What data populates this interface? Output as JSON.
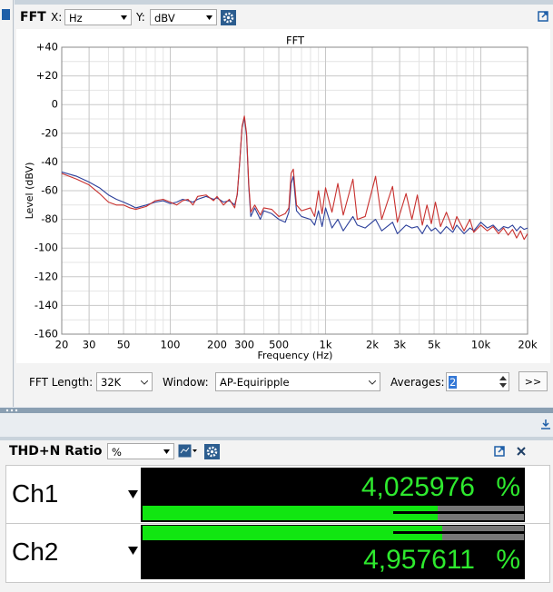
{
  "fft_panel": {
    "title": "FFT",
    "x_label": "X:",
    "x_unit": "Hz",
    "y_label": "Y:",
    "y_unit": "dBV"
  },
  "chart_data": {
    "type": "line",
    "title": "FFT",
    "x_axis_label": "Frequency (Hz)",
    "y_axis_label": "Level (dBV)",
    "log_x": true,
    "grid": true,
    "xlim": [
      20,
      20000
    ],
    "ylim": [
      -160,
      40
    ],
    "xticks": [
      20,
      30,
      50,
      100,
      200,
      300,
      500,
      {
        "value": 1000,
        "label": "1k"
      },
      {
        "value": 2000,
        "label": "2k"
      },
      {
        "value": 3000,
        "label": "3k"
      },
      {
        "value": 5000,
        "label": "5k"
      },
      {
        "value": 10000,
        "label": "10k"
      },
      {
        "value": 20000,
        "label": "20k"
      }
    ],
    "yticks": [
      -160,
      -140,
      -120,
      -100,
      -80,
      -60,
      -40,
      -20,
      0,
      {
        "value": 20,
        "label": "+20"
      },
      {
        "value": 40,
        "label": "+40"
      }
    ],
    "x": [
      20,
      25,
      30,
      35,
      40,
      45,
      50,
      55,
      60,
      70,
      80,
      90,
      100,
      110,
      120,
      130,
      140,
      150,
      170,
      190,
      200,
      220,
      240,
      260,
      270,
      280,
      290,
      300,
      310,
      320,
      330,
      350,
      380,
      400,
      450,
      500,
      550,
      580,
      600,
      620,
      650,
      700,
      800,
      850,
      900,
      950,
      1000,
      1100,
      1200,
      1300,
      1500,
      1600,
      1800,
      2100,
      2300,
      2700,
      2900,
      3300,
      3600,
      3900,
      4200,
      4500,
      4800,
      5100,
      5500,
      6000,
      6600,
      7000,
      7800,
      8500,
      9000,
      10000,
      11000,
      12000,
      13000,
      14000,
      15000,
      16000,
      17000,
      18000,
      19000,
      20000
    ],
    "series": [
      {
        "color": "#2b3f9a",
        "values": [
          -47,
          -50,
          -54,
          -58,
          -63,
          -66,
          -68,
          -70,
          -72,
          -70,
          -68,
          -67,
          -69,
          -68,
          -66,
          -67,
          -68,
          -66,
          -64,
          -66,
          -65,
          -68,
          -67,
          -70,
          -63,
          -40,
          -16,
          -9,
          -22,
          -57,
          -78,
          -72,
          -80,
          -74,
          -76,
          -80,
          -82,
          -75,
          -55,
          -50,
          -74,
          -78,
          -80,
          -84,
          -74,
          -85,
          -72,
          -86,
          -80,
          -88,
          -78,
          -84,
          -86,
          -80,
          -88,
          -82,
          -90,
          -84,
          -86,
          -85,
          -90,
          -84,
          -88,
          -86,
          -90,
          -85,
          -89,
          -84,
          -90,
          -86,
          -88,
          -82,
          -86,
          -84,
          -88,
          -85,
          -86,
          -84,
          -88,
          -85,
          -87,
          -86
        ]
      },
      {
        "color": "#c8302e",
        "values": [
          -48,
          -52,
          -56,
          -62,
          -68,
          -70,
          -70,
          -72,
          -73,
          -71,
          -67,
          -66,
          -68,
          -70,
          -67,
          -66,
          -70,
          -64,
          -63,
          -67,
          -64,
          -70,
          -66,
          -72,
          -62,
          -40,
          -15,
          -8,
          -20,
          -55,
          -75,
          -70,
          -77,
          -72,
          -73,
          -78,
          -76,
          -72,
          -48,
          -45,
          -70,
          -74,
          -72,
          -78,
          -60,
          -76,
          -58,
          -75,
          -55,
          -77,
          -52,
          -80,
          -78,
          -50,
          -80,
          -57,
          -82,
          -62,
          -80,
          -63,
          -84,
          -70,
          -83,
          -68,
          -85,
          -75,
          -87,
          -78,
          -88,
          -80,
          -89,
          -84,
          -88,
          -85,
          -90,
          -86,
          -91,
          -87,
          -93,
          -88,
          -94,
          -90
        ]
      }
    ]
  },
  "fft_controls": {
    "length_label": "FFT Length:",
    "length": "32K",
    "window_label": "Window:",
    "window": "AP-Equiripple",
    "averages_label": "Averages:",
    "averages": "2",
    "more_button": ">>"
  },
  "thd_panel": {
    "title": "THD+N Ratio",
    "unit": "%",
    "rows": [
      {
        "channel": "Ch1",
        "reading": "4,025976",
        "unit": "%"
      },
      {
        "channel": "Ch2",
        "reading": "4,957611",
        "unit": "%"
      }
    ]
  }
}
